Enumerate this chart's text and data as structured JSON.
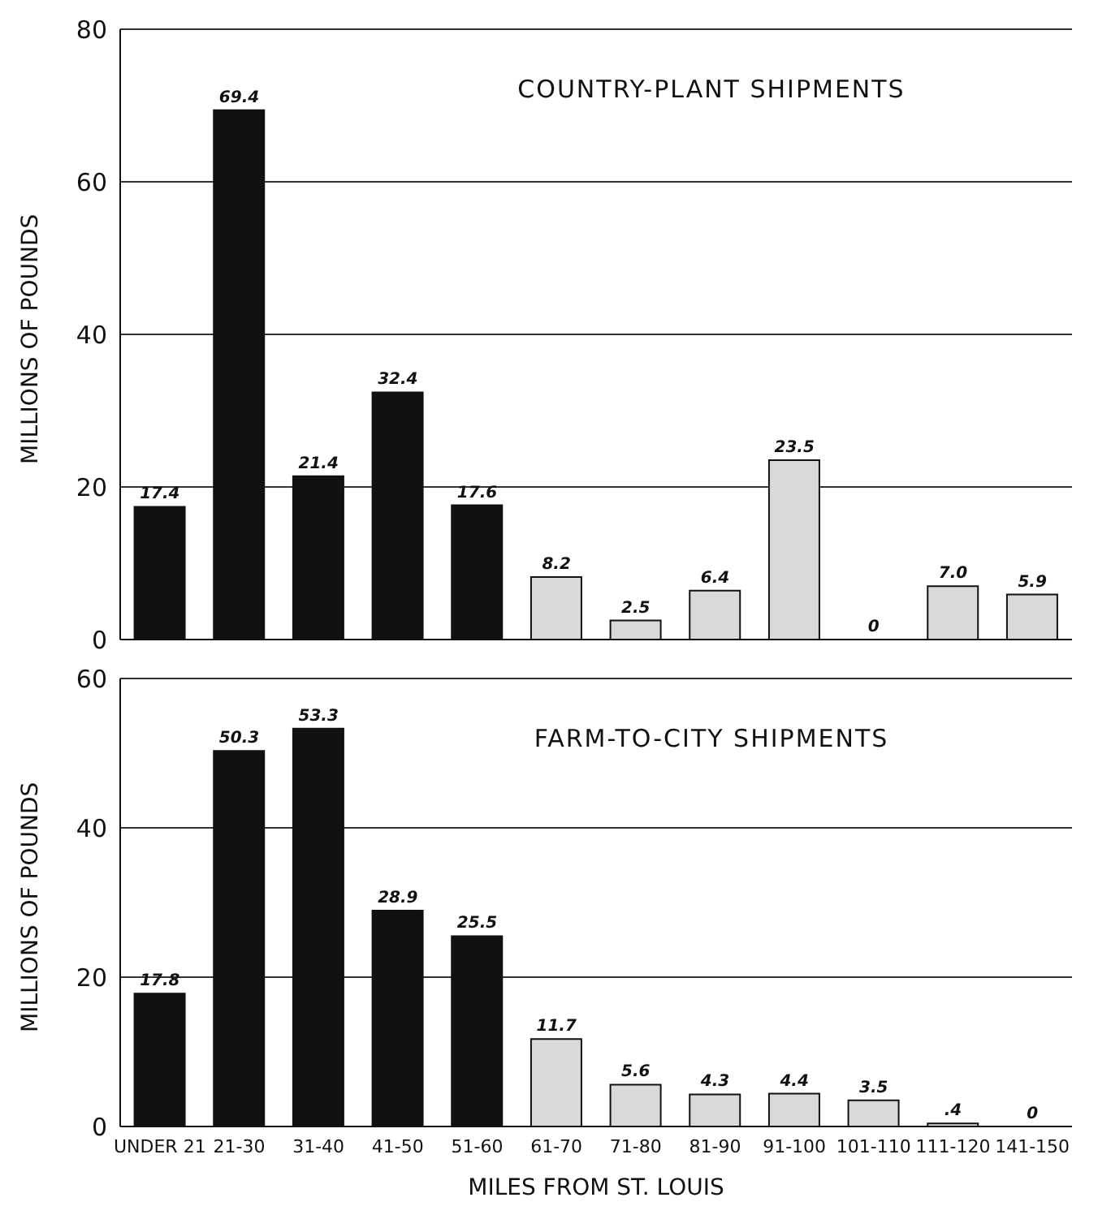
{
  "chart_data": [
    {
      "type": "bar",
      "title": "COUNTRY-PLANT SHIPMENTS",
      "ylabel": "MILLIONS OF POUNDS",
      "categories": [
        null,
        null,
        null,
        null,
        null,
        null,
        null,
        null,
        null,
        null,
        null,
        null
      ],
      "values": [
        17.4,
        69.4,
        21.4,
        32.4,
        17.6,
        8.2,
        2.5,
        6.4,
        23.5,
        0,
        7.0,
        5.9
      ],
      "value_labels": [
        "17.4",
        "69.4",
        "21.4",
        "32.4",
        "17.6",
        "8.2",
        "2.5",
        "6.4",
        "23.5",
        "0",
        "7.0",
        "5.9"
      ],
      "colors": [
        "#111111",
        "#111111",
        "#111111",
        "#111111",
        "#111111",
        "#d9d9d9",
        "#d9d9d9",
        "#d9d9d9",
        "#d9d9d9",
        "#d9d9d9",
        "#d9d9d9",
        "#d9d9d9"
      ],
      "ylim": [
        0,
        80
      ],
      "yticks": [
        0,
        20,
        40,
        60,
        80
      ],
      "grid": "y",
      "tick_labels": "y"
    },
    {
      "type": "bar",
      "title": "FARM-TO-CITY SHIPMENTS",
      "xlabel": "MILES FROM ST. LOUIS",
      "ylabel": "MILLIONS OF POUNDS",
      "categories": [
        "UNDER 21",
        "21-30",
        "31-40",
        "41-50",
        "51-60",
        "61-70",
        "71-80",
        "81-90",
        "91-100",
        "101-110",
        "111-120",
        "141-150"
      ],
      "values": [
        17.8,
        50.3,
        53.3,
        28.9,
        25.5,
        11.7,
        5.6,
        4.3,
        4.4,
        3.5,
        0.4,
        0
      ],
      "value_labels": [
        "17.8",
        "50.3",
        "53.3",
        "28.9",
        "25.5",
        "11.7",
        "5.6",
        "4.3",
        "4.4",
        "3.5",
        ".4",
        "0"
      ],
      "colors": [
        "#111111",
        "#111111",
        "#111111",
        "#111111",
        "#111111",
        "#d9d9d9",
        "#d9d9d9",
        "#d9d9d9",
        "#d9d9d9",
        "#d9d9d9",
        "#d9d9d9",
        "#d9d9d9"
      ],
      "ylim": [
        0,
        60
      ],
      "yticks": [
        0,
        20,
        40,
        60
      ],
      "grid": "y"
    }
  ]
}
